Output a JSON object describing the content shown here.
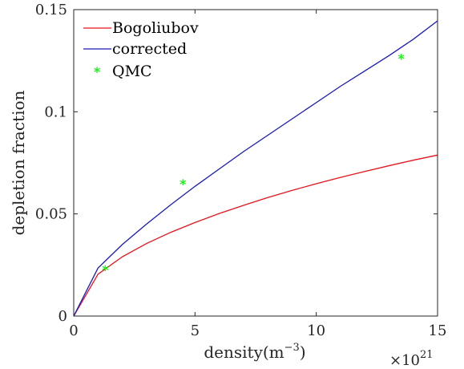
{
  "chart_data": {
    "type": "line",
    "xlabel_main": "density(m",
    "xlabel_sup": "−3",
    "xlabel_close": ")",
    "ylabel": "depletion fraction",
    "xlim": [
      0,
      15
    ],
    "ylim": [
      0,
      0.15
    ],
    "x_exponent_base": "×10",
    "x_exponent_power": "21",
    "xticks": [
      0,
      5,
      10,
      15
    ],
    "xtick_labels": [
      "0",
      "5",
      "10",
      "15"
    ],
    "yticks": [
      0,
      0.05,
      0.1,
      0.15
    ],
    "ytick_labels": [
      "0",
      "0.05",
      "0.1",
      "0.15"
    ],
    "grid": false,
    "legend_position": "top-left",
    "series": [
      {
        "name": "Bogoliubov",
        "kind": "line",
        "color": "#e8141c",
        "x": [
          0,
          1,
          2,
          3,
          4,
          5,
          6,
          7,
          8,
          9,
          10,
          11,
          12,
          13,
          14,
          15
        ],
        "y": [
          0,
          0.0205,
          0.029,
          0.0355,
          0.041,
          0.0458,
          0.0502,
          0.0542,
          0.058,
          0.0615,
          0.0648,
          0.0679,
          0.0708,
          0.0736,
          0.0763,
          0.0788
        ]
      },
      {
        "name": "corrected",
        "kind": "line",
        "color": "#1a1ab8",
        "x": [
          0,
          1,
          2,
          3,
          4,
          5,
          6,
          7,
          8,
          9,
          10,
          11,
          12,
          13,
          14,
          15
        ],
        "y": [
          0,
          0.0235,
          0.035,
          0.045,
          0.0545,
          0.0635,
          0.072,
          0.0805,
          0.0885,
          0.0965,
          0.1045,
          0.1125,
          0.12,
          0.1275,
          0.1355,
          0.1445
        ]
      },
      {
        "name": "QMC",
        "kind": "scatter",
        "color": "#22ee22",
        "marker": "*",
        "x": [
          1.3,
          4.5,
          13.5
        ],
        "y": [
          0.0235,
          0.0655,
          0.127
        ]
      }
    ]
  }
}
